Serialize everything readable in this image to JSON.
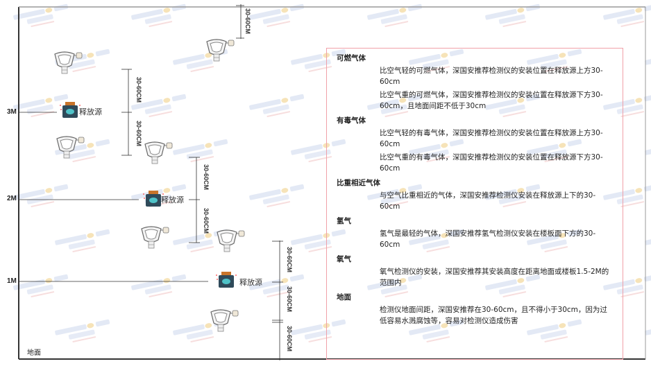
{
  "watermark": "SINGOAN 深国安",
  "levels": [
    "3M",
    "2M",
    "1M"
  ],
  "source_label": "释放源",
  "dimension_label": "30-60CM",
  "ground_label": "地面",
  "colors": {
    "panel_border": "#f0a0a8",
    "frame": "#333333",
    "source_body": "#2f4a5a",
    "source_cap": "#c8742a",
    "source_screen": "#4fc3c8"
  },
  "panel": {
    "sections": [
      {
        "heading": "可燃气体",
        "paragraphs": [
          "比空气轻的可燃气体，深国安推荐检测仪的安装位置在释放源上方30-60cm",
          "比空气重的可燃气体，深国安推荐检测仪的安装位置在释放源下方30-60cm，且地面间距不低于30cm"
        ]
      },
      {
        "heading": "有毒气体",
        "paragraphs": [
          "比空气轻的有毒气体，深国安推荐检测仪的安装位置在释放源上方30-60cm",
          "比空气重的有毒气体，深国安推荐检测仪的安装位置在释放源下方30-60cm"
        ]
      },
      {
        "heading": "比重相近气体",
        "paragraphs": [
          "与空气比重相近的气体，深国安推荐检测仪安装在释放源上下的30-60cm"
        ]
      },
      {
        "heading": "氢气",
        "paragraphs": [
          "氢气是最轻的气体，深国安推荐氢气检测仪安装在楼板面下方的30-60cm"
        ]
      },
      {
        "heading": "氧气",
        "paragraphs": [
          "氧气检测仪的安装，深国安推荐其安装高度在距离地面或楼板1.5-2M的范围内"
        ]
      },
      {
        "heading": "地面",
        "paragraphs": [
          "检测仪地面间距，深国安推荐在30-60cm，且不得小于30cm，因为过低容易水溅腐蚀等，容易对检测仪造成伤害"
        ]
      }
    ]
  }
}
